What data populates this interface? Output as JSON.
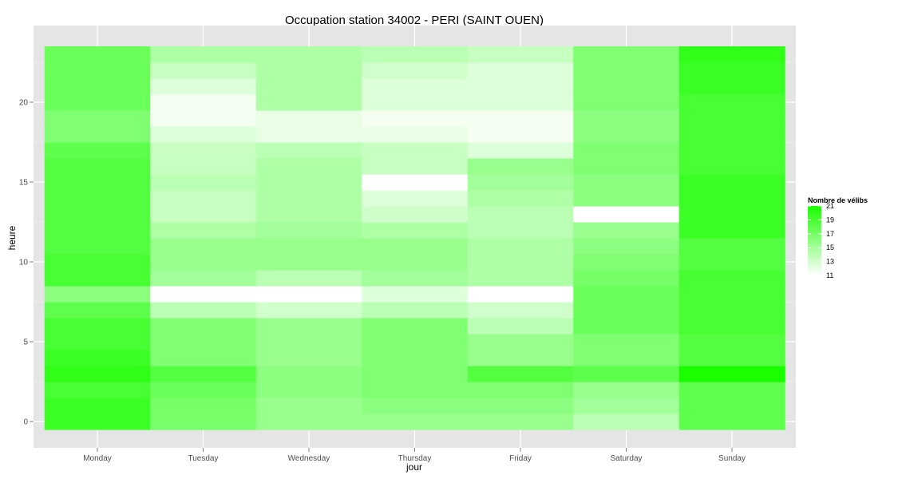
{
  "chart_data": {
    "type": "heatmap",
    "title": "Occupation station 34002 - PERI (SAINT OUEN)",
    "xlabel": "jour",
    "ylabel": "heure",
    "x_categories": [
      "Monday",
      "Tuesday",
      "Wednesday",
      "Thursday",
      "Friday",
      "Saturday",
      "Sunday"
    ],
    "y_range": [
      0,
      23
    ],
    "y_ticks": [
      0,
      5,
      10,
      15,
      20
    ],
    "grid": true,
    "legend": {
      "title": "Nombre de vélibs",
      "placement": "right",
      "min": 11,
      "max": 21,
      "ticks": [
        21,
        19,
        17,
        15,
        13,
        11
      ],
      "low_color": "#ffffff",
      "high_color": "#1aff00"
    },
    "colors": {
      "panel": "#e5e5e5",
      "grid": "#ffffff"
    },
    "values": [
      [
        19.5,
        17.0,
        15.5,
        15.5,
        15.5,
        14.0,
        18.0
      ],
      [
        19.5,
        17.0,
        15.5,
        16.0,
        16.0,
        15.0,
        18.0
      ],
      [
        19.0,
        17.5,
        16.0,
        16.5,
        16.5,
        15.5,
        18.0
      ],
      [
        20.0,
        18.5,
        16.0,
        16.5,
        18.5,
        18.0,
        21.0
      ],
      [
        19.5,
        16.5,
        15.5,
        16.5,
        15.5,
        16.5,
        18.5
      ],
      [
        19.0,
        16.5,
        15.5,
        16.5,
        15.5,
        16.5,
        18.5
      ],
      [
        19.0,
        16.5,
        15.5,
        16.5,
        14.0,
        17.5,
        19.0
      ],
      [
        18.0,
        14.0,
        13.0,
        14.0,
        13.0,
        17.5,
        19.0
      ],
      [
        16.0,
        11.0,
        11.0,
        12.5,
        11.0,
        17.5,
        19.0
      ],
      [
        19.0,
        15.0,
        14.0,
        15.0,
        14.5,
        17.0,
        19.0
      ],
      [
        19.0,
        15.5,
        15.5,
        15.5,
        14.5,
        16.5,
        18.5
      ],
      [
        18.5,
        15.5,
        15.5,
        15.5,
        14.5,
        16.0,
        18.5
      ],
      [
        18.5,
        14.5,
        15.0,
        14.5,
        14.0,
        15.5,
        19.5
      ],
      [
        18.5,
        13.5,
        14.5,
        13.0,
        14.0,
        11.0,
        19.5
      ],
      [
        18.5,
        13.5,
        14.5,
        12.5,
        14.5,
        16.0,
        19.5
      ],
      [
        18.5,
        14.0,
        14.5,
        11.0,
        15.0,
        16.0,
        19.5
      ],
      [
        18.5,
        13.5,
        14.5,
        13.5,
        15.5,
        16.5,
        19.0
      ],
      [
        18.0,
        13.5,
        14.0,
        13.5,
        12.5,
        16.5,
        19.0
      ],
      [
        16.5,
        12.5,
        12.0,
        12.0,
        11.5,
        16.0,
        19.0
      ],
      [
        16.5,
        11.5,
        12.0,
        11.5,
        11.5,
        16.0,
        19.0
      ],
      [
        17.5,
        11.5,
        14.5,
        12.5,
        12.5,
        16.5,
        19.0
      ],
      [
        17.5,
        12.5,
        14.5,
        12.5,
        12.5,
        16.5,
        19.5
      ],
      [
        17.5,
        13.5,
        14.5,
        13.0,
        12.5,
        16.5,
        19.5
      ],
      [
        17.5,
        14.5,
        14.5,
        14.0,
        13.5,
        16.5,
        20.0
      ]
    ]
  }
}
